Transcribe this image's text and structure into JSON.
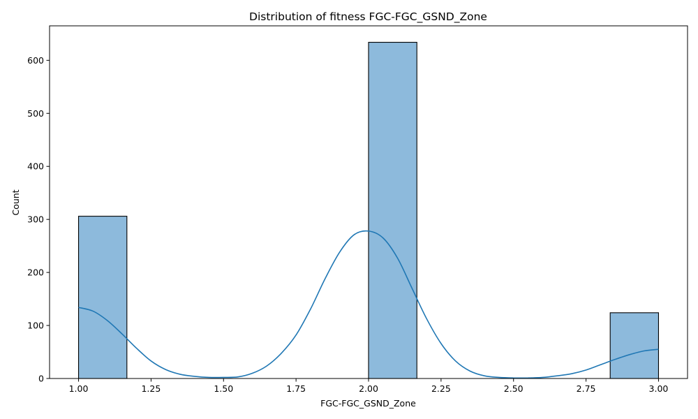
{
  "chart_data": {
    "type": "bar",
    "title": "Distribution of fitness FGC-FGC_GSND_Zone",
    "xlabel": "FGC-FGC_GSND_Zone",
    "ylabel": "Count",
    "xlim": [
      0.9,
      3.1
    ],
    "ylim": [
      0,
      665
    ],
    "x_ticks": [
      1.0,
      1.25,
      1.5,
      1.75,
      2.0,
      2.25,
      2.5,
      2.75,
      3.0
    ],
    "x_tick_labels": [
      "1.00",
      "1.25",
      "1.50",
      "1.75",
      "2.00",
      "2.25",
      "2.50",
      "2.75",
      "3.00"
    ],
    "y_ticks": [
      0,
      100,
      200,
      300,
      400,
      500,
      600
    ],
    "y_tick_labels": [
      "0",
      "100",
      "200",
      "300",
      "400",
      "500",
      "600"
    ],
    "bins": [
      {
        "start": 1.0,
        "end": 1.1667,
        "count": 306
      },
      {
        "start": 1.1667,
        "end": 1.3333,
        "count": 0
      },
      {
        "start": 1.3333,
        "end": 1.5,
        "count": 0
      },
      {
        "start": 1.5,
        "end": 1.6667,
        "count": 0
      },
      {
        "start": 1.6667,
        "end": 1.8333,
        "count": 0
      },
      {
        "start": 1.8333,
        "end": 2.0,
        "count": 0
      },
      {
        "start": 2.0,
        "end": 2.1667,
        "count": 634
      },
      {
        "start": 2.1667,
        "end": 2.3333,
        "count": 0
      },
      {
        "start": 2.3333,
        "end": 2.5,
        "count": 0
      },
      {
        "start": 2.5,
        "end": 2.6667,
        "count": 0
      },
      {
        "start": 2.6667,
        "end": 2.8333,
        "count": 0
      },
      {
        "start": 2.8333,
        "end": 3.0,
        "count": 124
      }
    ],
    "kde": {
      "x": [
        1.0,
        1.05,
        1.1,
        1.15,
        1.2,
        1.25,
        1.3,
        1.35,
        1.4,
        1.45,
        1.5,
        1.55,
        1.6,
        1.65,
        1.7,
        1.75,
        1.8,
        1.85,
        1.9,
        1.95,
        2.0,
        2.05,
        2.1,
        2.15,
        2.2,
        2.25,
        2.3,
        2.35,
        2.4,
        2.45,
        2.5,
        2.55,
        2.6,
        2.65,
        2.7,
        2.75,
        2.8,
        2.85,
        2.9,
        2.95,
        3.0
      ],
      "y": [
        134,
        127,
        109,
        84,
        57,
        33,
        17,
        8,
        4,
        2,
        2,
        3,
        10,
        24,
        48,
        82,
        131,
        188,
        238,
        271,
        278,
        265,
        227,
        170,
        113,
        66,
        33,
        14,
        5,
        2,
        1,
        1,
        2,
        5,
        9,
        16,
        26,
        36,
        45,
        52,
        55
      ]
    },
    "colors": {
      "bar_fill": "#8dbadc",
      "bar_edge": "#000000",
      "kde_line": "#1f77b4"
    },
    "grid": false,
    "legend": "none"
  }
}
